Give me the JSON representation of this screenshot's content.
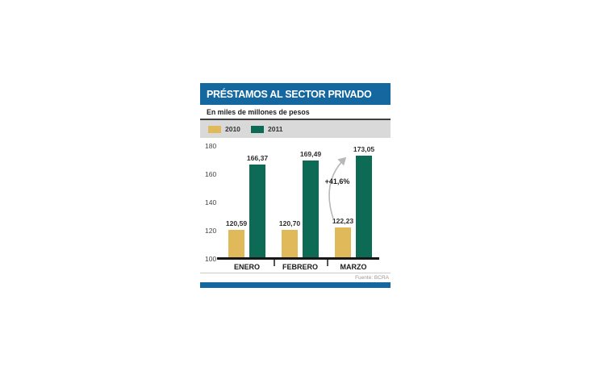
{
  "infographic": {
    "title": "PRÉSTAMOS AL SECTOR PRIVADO",
    "subtitle": "En miles de millones de pesos",
    "source": "Fuente: BCRA"
  },
  "colors": {
    "header_blue": "#15689f",
    "bottom_bar_blue": "#15689f",
    "legend_band_gray": "#d9d9d9",
    "series_2010_gold": "#dfb95a",
    "series_2011_green": "#0d6a54",
    "arrow_gray": "#b8b8b8"
  },
  "chart_data": {
    "type": "bar",
    "title": "PRÉSTAMOS AL SECTOR PRIVADO",
    "subtitle": "En miles de millones de pesos",
    "categories": [
      "ENERO",
      "FEBRERO",
      "MARZO"
    ],
    "series": [
      {
        "name": "2010",
        "color": "#dfb95a",
        "values": [
          120.59,
          120.7,
          122.23
        ],
        "labels": [
          "120,59",
          "120,70",
          "122,23"
        ]
      },
      {
        "name": "2011",
        "color": "#0d6a54",
        "values": [
          166.37,
          169.49,
          173.05
        ],
        "labels": [
          "166,37",
          "169,49",
          "173,05"
        ]
      }
    ],
    "ylim": [
      100,
      180
    ],
    "yticks": [
      100,
      120,
      140,
      160,
      180
    ],
    "annotation": {
      "text": "+41,6%",
      "target": "MARZO 2011",
      "meaning": "interannual growth"
    },
    "legend_position": "top",
    "grid": false,
    "source": "Fuente: BCRA"
  }
}
